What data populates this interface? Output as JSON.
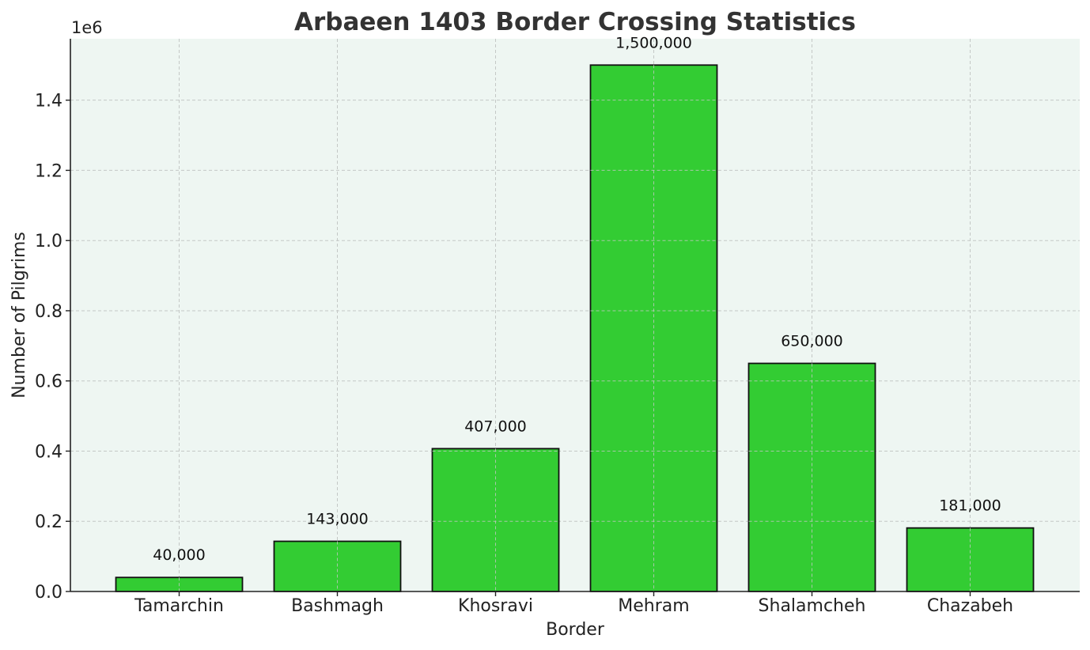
{
  "chart_data": {
    "type": "bar",
    "title": "Arbaeen 1403 Border Crossing Statistics",
    "xlabel": "Border",
    "ylabel": "Number of Pilgrims",
    "y_offset_label": "1e6",
    "categories": [
      "Tamarchin",
      "Bashmagh",
      "Khosravi",
      "Mehram",
      "Shalamcheh",
      "Chazabeh"
    ],
    "values": [
      40000,
      143000,
      407000,
      1500000,
      650000,
      181000
    ],
    "value_labels": [
      "40,000",
      "143,000",
      "407,000",
      "1,500,000",
      "650,000",
      "181,000"
    ],
    "ylim": [
      0,
      1575000
    ],
    "yticks": [
      0,
      200000,
      400000,
      600000,
      800000,
      1000000,
      1200000,
      1400000
    ],
    "ytick_labels": [
      "0.0",
      "0.2",
      "0.4",
      "0.6",
      "0.8",
      "1.0",
      "1.2",
      "1.4"
    ],
    "grid": true,
    "colors": {
      "bar_fill": "#33cc33",
      "bar_edge": "#111111",
      "plot_background": "#eef6f2",
      "grid": "#c4c8c6",
      "text": "#222222",
      "title": "#333333"
    }
  }
}
